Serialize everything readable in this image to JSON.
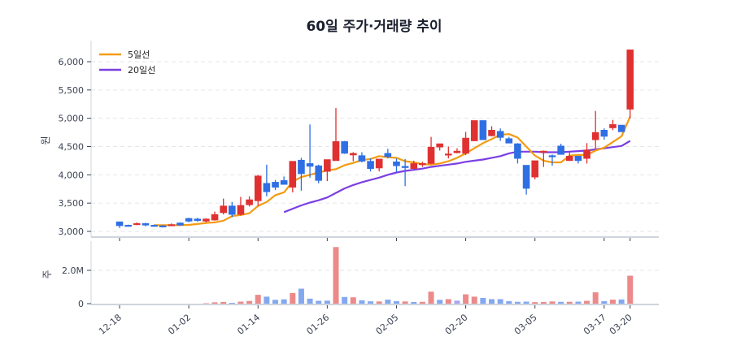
{
  "chart_data": {
    "type": "candlestick",
    "title": "60일 주가·거래량 추이",
    "price_panel": {
      "ylabel": "원",
      "ylim": [
        2900,
        6250
      ],
      "yticks": [
        3000,
        3500,
        4000,
        4500,
        5000,
        5500,
        6000
      ],
      "ytick_labels": [
        "3,000",
        "3,500",
        "4,000",
        "4,500",
        "5,000",
        "5,500",
        "6,000"
      ],
      "grid": true
    },
    "volume_panel": {
      "ylabel": "주",
      "ylim": [
        0,
        3500000
      ],
      "yticks": [
        0,
        2000000
      ],
      "ytick_labels": [
        "0",
        "2.0M"
      ],
      "grid": true
    },
    "xtick_indices": [
      0,
      8,
      16,
      24,
      32,
      40,
      48,
      56,
      59
    ],
    "xtick_labels": [
      "12-18",
      "01-02",
      "01-14",
      "01-26",
      "02-05",
      "02-20",
      "03-05",
      "03-17",
      "03-20"
    ],
    "legend": [
      {
        "label": "5일선",
        "color": "#f39c12"
      },
      {
        "label": "20일선",
        "color": "#7b3fe4"
      }
    ],
    "colors": {
      "up": "#e03131",
      "down": "#2f6fe4",
      "vol_up": "#ec8a8a",
      "vol_down": "#84a8f0",
      "ma5": "#f39c12",
      "ma20": "#7b3fe4"
    },
    "ohlc": [
      [
        3170,
        3170,
        3060,
        3100
      ],
      [
        3110,
        3120,
        3090,
        3100
      ],
      [
        3130,
        3160,
        3110,
        3140
      ],
      [
        3140,
        3150,
        3090,
        3110
      ],
      [
        3110,
        3120,
        3090,
        3100
      ],
      [
        3100,
        3110,
        3070,
        3090
      ],
      [
        3120,
        3140,
        3100,
        3120
      ],
      [
        3150,
        3160,
        3100,
        3110
      ],
      [
        3230,
        3240,
        3160,
        3180
      ],
      [
        3220,
        3240,
        3170,
        3190
      ],
      [
        3180,
        3230,
        3160,
        3220
      ],
      [
        3200,
        3350,
        3190,
        3300
      ],
      [
        3330,
        3580,
        3300,
        3450
      ],
      [
        3450,
        3520,
        3250,
        3300
      ],
      [
        3300,
        3610,
        3280,
        3460
      ],
      [
        3470,
        3620,
        3440,
        3560
      ],
      [
        3540,
        4000,
        3450,
        3980
      ],
      [
        3850,
        4180,
        3620,
        3700
      ],
      [
        3870,
        3910,
        3730,
        3780
      ],
      [
        3900,
        3970,
        3850,
        3830
      ],
      [
        3780,
        3960,
        3690,
        4240
      ],
      [
        4260,
        4300,
        3720,
        4020
      ],
      [
        4200,
        4890,
        3950,
        4150
      ],
      [
        4160,
        4180,
        3850,
        3900
      ],
      [
        4060,
        4030,
        3890,
        4270
      ],
      [
        4250,
        5180,
        4250,
        4590
      ],
      [
        4590,
        4600,
        4370,
        4380
      ],
      [
        4350,
        4400,
        4240,
        4380
      ],
      [
        4340,
        4400,
        4220,
        4240
      ],
      [
        4240,
        4290,
        4060,
        4110
      ],
      [
        4120,
        4220,
        4060,
        4280
      ],
      [
        4380,
        4460,
        4290,
        4320
      ],
      [
        4230,
        4290,
        4050,
        4160
      ],
      [
        4150,
        4280,
        3800,
        4140
      ],
      [
        4110,
        4250,
        4100,
        4200
      ],
      [
        4180,
        4230,
        4140,
        4200
      ],
      [
        4200,
        4670,
        4190,
        4490
      ],
      [
        4490,
        4550,
        4430,
        4550
      ],
      [
        4370,
        4500,
        4290,
        4370
      ],
      [
        4390,
        4470,
        4380,
        4420
      ],
      [
        4380,
        4760,
        4350,
        4650
      ],
      [
        4600,
        4960,
        4620,
        4960
      ],
      [
        4960,
        4960,
        4640,
        4620
      ],
      [
        4690,
        4860,
        4680,
        4790
      ],
      [
        4770,
        4820,
        4600,
        4660
      ],
      [
        4640,
        4670,
        4560,
        4560
      ],
      [
        4550,
        4560,
        4200,
        4290
      ],
      [
        4170,
        4170,
        3650,
        3760
      ],
      [
        3960,
        4080,
        3920,
        4250
      ],
      [
        4400,
        4430,
        4140,
        4420
      ],
      [
        4340,
        4360,
        4160,
        4330
      ],
      [
        4510,
        4550,
        4360,
        4360
      ],
      [
        4250,
        4400,
        4250,
        4330
      ],
      [
        4330,
        4300,
        4200,
        4250
      ],
      [
        4290,
        4560,
        4200,
        4440
      ],
      [
        4620,
        5130,
        4450,
        4750
      ],
      [
        4790,
        4820,
        4620,
        4680
      ],
      [
        4830,
        4970,
        4790,
        4890
      ],
      [
        4880,
        4880,
        4760,
        4760
      ],
      [
        5160,
        6210,
        5000,
        6210
      ]
    ],
    "volume": [
      0,
      0,
      0,
      0,
      0,
      0,
      0,
      0,
      0,
      0,
      25000,
      80000,
      100000,
      50000,
      120000,
      160000,
      530000,
      420000,
      230000,
      260000,
      640000,
      900000,
      300000,
      170000,
      180000,
      3400000,
      400000,
      380000,
      200000,
      140000,
      130000,
      240000,
      150000,
      130000,
      100000,
      110000,
      720000,
      230000,
      270000,
      180000,
      560000,
      420000,
      340000,
      270000,
      270000,
      150000,
      110000,
      120000,
      90000,
      100000,
      130000,
      110000,
      110000,
      120000,
      170000,
      680000,
      150000,
      240000,
      250000,
      1680000
    ],
    "volume_dir": [
      -1,
      -1,
      -1,
      -1,
      -1,
      -1,
      -1,
      -1,
      -1,
      -1,
      1,
      1,
      1,
      -1,
      1,
      1,
      1,
      -1,
      -1,
      -1,
      1,
      -1,
      -1,
      -1,
      -1,
      1,
      -1,
      1,
      -1,
      -1,
      1,
      -1,
      -1,
      1,
      -1,
      1,
      1,
      -1,
      1,
      0,
      1,
      1,
      -1,
      -1,
      -1,
      -1,
      -1,
      -1,
      1,
      1,
      1,
      -1,
      1,
      -1,
      1,
      1,
      -1,
      1,
      -1,
      1
    ],
    "ma5": [
      null,
      null,
      null,
      null,
      3110,
      3110,
      3110,
      3110,
      3115,
      3130,
      3150,
      3160,
      3190,
      3270,
      3290,
      3320,
      3450,
      3520,
      3640,
      3690,
      3880,
      3960,
      4000,
      4040,
      4080,
      4100,
      4170,
      4210,
      4260,
      4280,
      4330,
      4310,
      4300,
      4240,
      4220,
      4190,
      4180,
      4200,
      4240,
      4300,
      4380,
      4470,
      4560,
      4630,
      4710,
      4720,
      4660,
      4500,
      4340,
      4250,
      4220,
      4220,
      4340,
      4350,
      4350,
      4430,
      4480,
      4580,
      4680,
      5030
    ],
    "ma20": [
      null,
      null,
      null,
      null,
      null,
      null,
      null,
      null,
      null,
      null,
      null,
      null,
      null,
      null,
      null,
      null,
      null,
      null,
      null,
      3340,
      3400,
      3460,
      3510,
      3550,
      3600,
      3680,
      3760,
      3820,
      3870,
      3910,
      3950,
      4000,
      4040,
      4070,
      4090,
      4110,
      4140,
      4160,
      4180,
      4200,
      4230,
      4250,
      4270,
      4300,
      4330,
      4380,
      4410,
      4410,
      4410,
      4400,
      4400,
      4400,
      4410,
      4420,
      4430,
      4450,
      4470,
      4490,
      4510,
      4600
    ]
  }
}
